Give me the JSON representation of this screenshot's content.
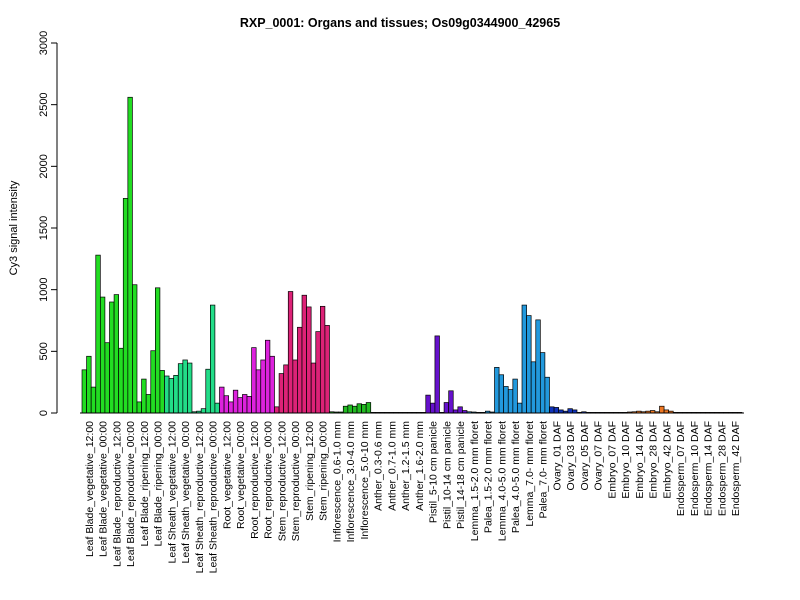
{
  "chart_data": {
    "type": "bar",
    "title": "RXP_0001: Organs and tissues; Os09g0344900_42965",
    "xlabel": "",
    "ylabel": "Cy3 signal intensity",
    "ylim": [
      0,
      3000
    ],
    "yticks": [
      0,
      500,
      1000,
      1500,
      2000,
      2500,
      3000
    ],
    "grid": false,
    "legend": "none",
    "groups": [
      {
        "label": "Leaf Blade_vegetative_12:00",
        "color": "#22dd22",
        "values": [
          350,
          460,
          210
        ]
      },
      {
        "label": "Leaf Blade_vegetative_00:00",
        "color": "#22dd22",
        "values": [
          1280,
          940,
          570
        ]
      },
      {
        "label": "Leaf Blade_reproductive_12:00",
        "color": "#22dd22",
        "values": [
          900,
          960,
          525
        ]
      },
      {
        "label": "Leaf Blade_reproductive_00:00",
        "color": "#22dd22",
        "values": [
          1740,
          2560,
          1040
        ]
      },
      {
        "label": "Leaf Blade_ripening_12:00",
        "color": "#22dd22",
        "values": [
          90,
          275,
          150
        ]
      },
      {
        "label": "Leaf Blade_ripening_00:00",
        "color": "#22dd22",
        "values": [
          505,
          1015,
          345
        ]
      },
      {
        "label": "Leaf Sheath_vegetative_12:00",
        "color": "#22dd88",
        "values": [
          300,
          280,
          305
        ]
      },
      {
        "label": "Leaf Sheath_vegetative_00:00",
        "color": "#22dd88",
        "values": [
          400,
          430,
          405
        ]
      },
      {
        "label": "Leaf Sheath_reproductive_12:00",
        "color": "#22dd88",
        "values": [
          10,
          15,
          35
        ]
      },
      {
        "label": "Leaf Sheath_reproductive_00:00",
        "color": "#22dd88",
        "values": [
          355,
          875,
          80
        ]
      },
      {
        "label": "Root_vegetative_12:00",
        "color": "#dd22dd",
        "values": [
          210,
          140,
          90
        ]
      },
      {
        "label": "Root_vegetative_00:00",
        "color": "#dd22dd",
        "values": [
          185,
          125,
          150
        ]
      },
      {
        "label": "Root_reproductive_12:00",
        "color": "#dd22dd",
        "values": [
          135,
          530,
          350
        ]
      },
      {
        "label": "Root_reproductive_00:00",
        "color": "#dd22dd",
        "values": [
          430,
          590,
          460
        ]
      },
      {
        "label": "Stem_reproductive_12:00",
        "color": "#dd2277",
        "values": [
          50,
          320,
          390
        ]
      },
      {
        "label": "Stem_reproductive_00:00",
        "color": "#dd2277",
        "values": [
          985,
          430,
          695
        ]
      },
      {
        "label": "Stem_ripening_12:00",
        "color": "#dd2277",
        "values": [
          955,
          860,
          405
        ]
      },
      {
        "label": "Stem_ripening_00:00",
        "color": "#dd2277",
        "values": [
          660,
          865,
          710
        ]
      },
      {
        "label": "Inflorescence_0.6-1.0 mm",
        "color": "#22bb22",
        "values": [
          10,
          8,
          8
        ]
      },
      {
        "label": "Inflorescence_3.0-4.0 mm",
        "color": "#22bb22",
        "values": [
          55,
          65,
          55
        ]
      },
      {
        "label": "Inflorescence_5.0-10 mm",
        "color": "#22bb22",
        "values": [
          75,
          70,
          85
        ]
      },
      {
        "label": "Anther_0.3-0.6 mm",
        "color": "#777777",
        "values": [
          5,
          5,
          5
        ]
      },
      {
        "label": "Anther_0.7-1.0 mm",
        "color": "#777777",
        "values": [
          5,
          5,
          5
        ]
      },
      {
        "label": "Anther_1.2-1.5 mm",
        "color": "#777777",
        "values": [
          5,
          5,
          5
        ]
      },
      {
        "label": "Anther_1.6-2.0 mm",
        "color": "#777777",
        "values": [
          5,
          5,
          5
        ]
      },
      {
        "label": "Pistil_5-10 cm panicle",
        "color": "#6611cc",
        "values": [
          145,
          80,
          625
        ]
      },
      {
        "label": "Pistil_10-14 cm panicle",
        "color": "#6611cc",
        "values": [
          5,
          85,
          180
        ]
      },
      {
        "label": "Pistil_14-18 cm panicle",
        "color": "#6611cc",
        "values": [
          25,
          50,
          20
        ]
      },
      {
        "label": "Lemma_1.5-2.0 mm floret",
        "color": "#2299dd",
        "values": [
          10,
          8,
          5
        ]
      },
      {
        "label": "Palea_1.5-2.0 mm floret",
        "color": "#2299dd",
        "values": [
          5,
          15,
          8
        ]
      },
      {
        "label": "Lemma_4.0-5.0 mm floret",
        "color": "#2299dd",
        "values": [
          370,
          310,
          215
        ]
      },
      {
        "label": "Palea_4.0-5.0 mm floret",
        "color": "#2299dd",
        "values": [
          190,
          275,
          80
        ]
      },
      {
        "label": "Lemma_7.0- mm floret",
        "color": "#2299dd",
        "values": [
          875,
          790,
          415
        ]
      },
      {
        "label": "Palea_7.0- mm floret",
        "color": "#2299dd",
        "values": [
          755,
          490,
          290
        ]
      },
      {
        "label": "Ovary_01 DAF",
        "color": "#1133bb",
        "values": [
          50,
          45,
          25
        ]
      },
      {
        "label": "Ovary_03 DAF",
        "color": "#1133bb",
        "values": [
          15,
          35,
          25
        ]
      },
      {
        "label": "Ovary_05 DAF",
        "color": "#1133bb",
        "values": [
          5,
          10,
          5
        ]
      },
      {
        "label": "Ovary_07 DAF",
        "color": "#1133bb",
        "values": [
          5,
          5,
          5
        ]
      },
      {
        "label": "Embryo_07 DAF",
        "color": "#ee7722",
        "values": [
          5,
          5,
          5
        ]
      },
      {
        "label": "Embryo_10 DAF",
        "color": "#ee7722",
        "values": [
          5,
          5,
          8
        ]
      },
      {
        "label": "Embryo_14 DAF",
        "color": "#ee7722",
        "values": [
          10,
          15,
          10
        ]
      },
      {
        "label": "Embryo_28 DAF",
        "color": "#ee7722",
        "values": [
          15,
          20,
          10
        ]
      },
      {
        "label": "Embryo_42 DAF",
        "color": "#ee7722",
        "values": [
          55,
          25,
          15
        ]
      },
      {
        "label": "Endosperm_07 DAF",
        "color": "#cc5522",
        "values": [
          5,
          5,
          5
        ]
      },
      {
        "label": "Endosperm_10 DAF",
        "color": "#cc5522",
        "values": [
          5,
          5,
          5
        ]
      },
      {
        "label": "Endosperm_14 DAF",
        "color": "#cc5522",
        "values": [
          5,
          5,
          5
        ]
      },
      {
        "label": "Endosperm_28 DAF",
        "color": "#cc5522",
        "values": [
          5,
          5,
          5
        ]
      },
      {
        "label": "Endosperm_42 DAF",
        "color": "#cc5522",
        "values": [
          5,
          5,
          5
        ]
      }
    ]
  }
}
